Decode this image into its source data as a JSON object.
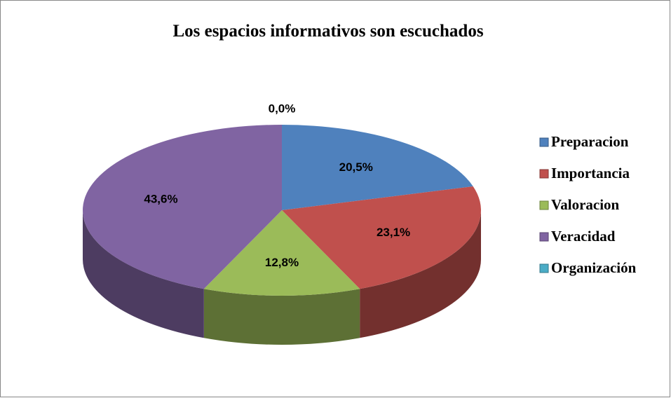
{
  "chart_data": {
    "type": "pie",
    "title": "Los espacios informativos son escuchados",
    "categories": [
      "Preparacion",
      "Importancia",
      "Valoracion",
      "Veracidad",
      "Organización"
    ],
    "values": [
      20.5,
      23.1,
      12.8,
      43.6,
      0.0
    ],
    "value_labels": [
      "20,5%",
      "23,1%",
      "12,8%",
      "43,6%",
      "0,0%"
    ],
    "colors": [
      "#4f81bd",
      "#c0504d",
      "#9bbb59",
      "#8064a2",
      "#4bacc6"
    ],
    "legend": "right"
  }
}
